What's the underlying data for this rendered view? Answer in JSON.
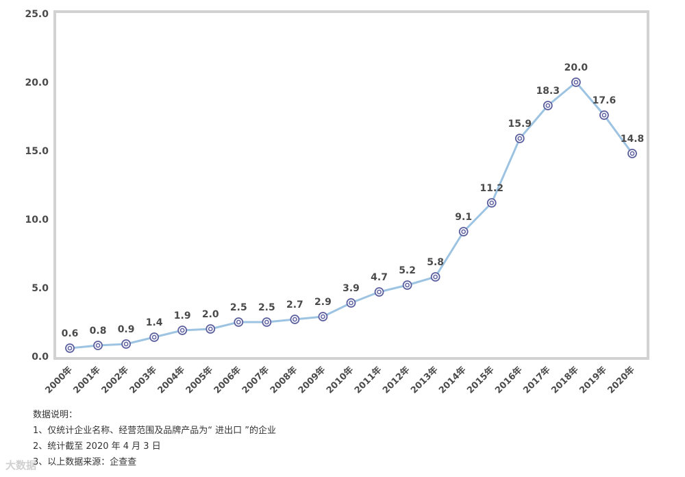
{
  "chart_data": {
    "type": "line",
    "title": "",
    "xlabel": "",
    "ylabel": "",
    "categories": [
      "2000年",
      "2001年",
      "2002年",
      "2003年",
      "2004年",
      "2005年",
      "2006年",
      "2007年",
      "2008年",
      "2009年",
      "2010年",
      "2011年",
      "2012年",
      "2013年",
      "2014年",
      "2015年",
      "2016年",
      "2017年",
      "2018年",
      "2019年",
      "2020年"
    ],
    "values": [
      0.6,
      0.8,
      0.9,
      1.4,
      1.9,
      2.0,
      2.5,
      2.5,
      2.7,
      2.9,
      3.9,
      4.7,
      5.2,
      5.8,
      9.1,
      11.2,
      15.9,
      18.3,
      20.0,
      17.6,
      14.8
    ],
    "value_labels": [
      "0.6",
      "0.8",
      "0.9",
      "1.4",
      "1.9",
      "2.0",
      "2.5",
      "2.5",
      "2.7",
      "2.9",
      "3.9",
      "4.7",
      "5.2",
      "5.8",
      "9.1",
      "11.2",
      "15.9",
      "18.3",
      "20.0",
      "17.6",
      "14.8"
    ],
    "ylim": [
      0,
      25
    ],
    "yticks": [
      0,
      5,
      10,
      15,
      20,
      25
    ],
    "ytick_labels": [
      "0.0",
      "5.0",
      "10.0",
      "15.0",
      "20.0",
      "25.0"
    ],
    "grid": false,
    "legend": "none",
    "colors": {
      "line": "#9dc3e2",
      "marker_ring": "#5b5f9e",
      "marker_fill": "#ffffff",
      "frame": "#cfcfcf"
    }
  },
  "notes": {
    "heading": "数据说明：",
    "items": [
      "1、仅统计企业名称、经营范围及品牌产品为“ 进出口 ”的企业",
      "2、统计截至 2020 年 4 月 3 日",
      "3、以上数据来源：企查查"
    ]
  },
  "watermark": "大数据"
}
